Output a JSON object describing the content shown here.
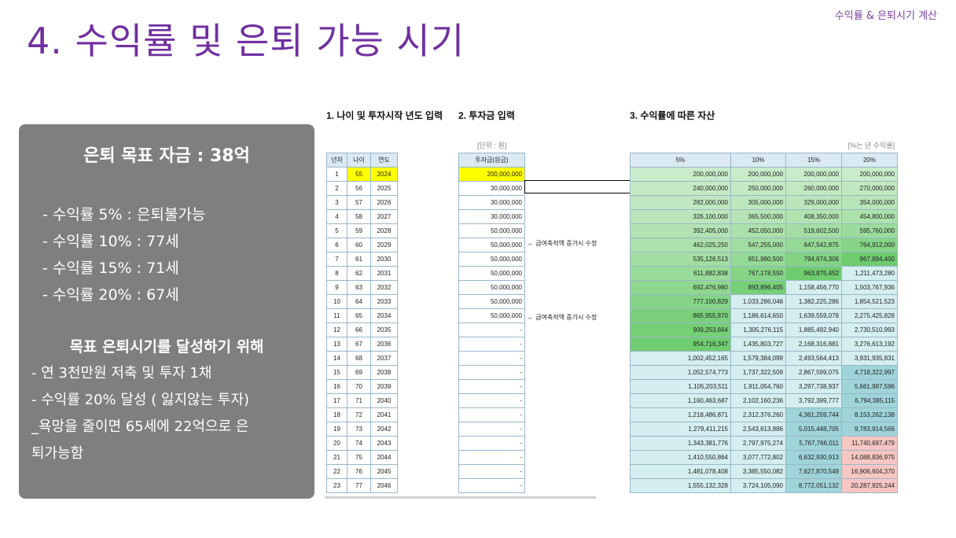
{
  "header": {
    "section_label": "수익률 & 은퇴시기 계산",
    "title": "4. 수익률 및 은퇴 가능 시기"
  },
  "summary": {
    "goal": "은퇴 목표 자금 : 38억",
    "rates": [
      "- 수익률   5% : 은퇴불가능",
      "- 수익률 10% : 77세",
      "- 수익률 15% : 71세",
      "- 수익률 20% : 67세"
    ],
    "achieve_title": "목표 은퇴시기를 달성하기 위해",
    "achieve_items": [
      "- 연 3천만원 저축 및 투자 1채",
      "- 수익률 20% 달성 ( 잃지않는 투자)",
      "_욕망을 줄이면 65세에 22억으로 은",
      "퇴가능함"
    ]
  },
  "sheet": {
    "section1_title": "1. 나이 및 투자시작 년도 입력",
    "section2_title": "2. 투자금 입력",
    "section3_title": "3. 수익률에 따른 자산",
    "unit_left": "[단위 : 원]",
    "unit_right": "[%는 년 수익률]",
    "age_headers": [
      "년차",
      "나이",
      "연도"
    ],
    "invest_header": "투자금(원금)",
    "return_headers": [
      "5%",
      "10%",
      "15%",
      "20%"
    ],
    "note": "← 급여축적액 증가시 수정",
    "rows": [
      {
        "n": "1",
        "age": "55",
        "year": "2024",
        "inv": "200,000,000",
        "r": [
          "200,000,000",
          "200,000,000",
          "200,000,000",
          "200,000,000"
        ]
      },
      {
        "n": "2",
        "age": "56",
        "year": "2025",
        "inv": "30,000,000",
        "r": [
          "240,000,000",
          "250,000,000",
          "260,000,000",
          "270,000,000"
        ]
      },
      {
        "n": "3",
        "age": "57",
        "year": "2026",
        "inv": "30,000,000",
        "r": [
          "282,000,000",
          "305,000,000",
          "329,000,000",
          "354,000,000"
        ]
      },
      {
        "n": "4",
        "age": "58",
        "year": "2027",
        "inv": "30,000,000",
        "r": [
          "326,100,000",
          "365,500,000",
          "408,350,000",
          "454,800,000"
        ]
      },
      {
        "n": "5",
        "age": "59",
        "year": "2028",
        "inv": "50,000,000",
        "r": [
          "392,405,000",
          "452,050,000",
          "519,602,500",
          "595,760,000"
        ]
      },
      {
        "n": "6",
        "age": "60",
        "year": "2029",
        "inv": "50,000,000",
        "r": [
          "462,025,250",
          "547,255,000",
          "647,542,875",
          "764,912,000"
        ]
      },
      {
        "n": "7",
        "age": "61",
        "year": "2030",
        "inv": "50,000,000",
        "r": [
          "535,126,513",
          "651,980,500",
          "794,674,306",
          "967,894,400"
        ]
      },
      {
        "n": "8",
        "age": "62",
        "year": "2031",
        "inv": "50,000,000",
        "r": [
          "611,882,838",
          "767,178,550",
          "963,875,452",
          "1,211,473,280"
        ]
      },
      {
        "n": "9",
        "age": "63",
        "year": "2032",
        "inv": "50,000,000",
        "r": [
          "692,476,980",
          "893,896,405",
          "1,158,456,770",
          "1,503,767,936"
        ]
      },
      {
        "n": "10",
        "age": "64",
        "year": "2033",
        "inv": "50,000,000",
        "r": [
          "777,100,829",
          "1,033,286,046",
          "1,382,225,286",
          "1,854,521,523"
        ]
      },
      {
        "n": "11",
        "age": "65",
        "year": "2034",
        "inv": "50,000,000",
        "r": [
          "865,955,870",
          "1,186,614,650",
          "1,639,559,078",
          "2,275,425,828"
        ]
      },
      {
        "n": "12",
        "age": "66",
        "year": "2035",
        "inv": "-",
        "r": [
          "909,253,664",
          "1,305,276,115",
          "1,885,492,940",
          "2,730,510,993"
        ]
      },
      {
        "n": "13",
        "age": "67",
        "year": "2036",
        "inv": "-",
        "r": [
          "954,716,347",
          "1,435,803,727",
          "2,168,316,881",
          "3,276,613,192"
        ]
      },
      {
        "n": "14",
        "age": "68",
        "year": "2037",
        "inv": "-",
        "r": [
          "1,002,452,165",
          "1,579,384,099",
          "2,493,564,413",
          "3,931,935,831"
        ]
      },
      {
        "n": "15",
        "age": "69",
        "year": "2038",
        "inv": "-",
        "r": [
          "1,052,574,773",
          "1,737,322,509",
          "2,867,599,075",
          "4,718,322,997"
        ]
      },
      {
        "n": "16",
        "age": "70",
        "year": "2039",
        "inv": "-",
        "r": [
          "1,105,203,511",
          "1,911,054,760",
          "3,297,738,937",
          "5,661,987,596"
        ]
      },
      {
        "n": "17",
        "age": "71",
        "year": "2040",
        "inv": "-",
        "r": [
          "1,160,463,687",
          "2,102,160,236",
          "3,792,399,777",
          "6,794,385,115"
        ]
      },
      {
        "n": "18",
        "age": "72",
        "year": "2041",
        "inv": "-",
        "r": [
          "1,218,486,871",
          "2,312,376,260",
          "4,361,259,744",
          "8,153,262,138"
        ]
      },
      {
        "n": "19",
        "age": "73",
        "year": "2042",
        "inv": "-",
        "r": [
          "1,279,411,215",
          "2,543,613,886",
          "5,015,448,705",
          "9,783,914,566"
        ]
      },
      {
        "n": "20",
        "age": "74",
        "year": "2043",
        "inv": "-",
        "r": [
          "1,343,381,776",
          "2,797,975,274",
          "5,767,766,011",
          "11,740,697,479"
        ]
      },
      {
        "n": "21",
        "age": "75",
        "year": "2044",
        "inv": "-",
        "r": [
          "1,410,550,864",
          "3,077,772,802",
          "6,632,930,913",
          "14,088,836,975"
        ]
      },
      {
        "n": "22",
        "age": "76",
        "year": "2045",
        "inv": "-",
        "r": [
          "1,481,078,408",
          "3,385,550,082",
          "7,627,870,549",
          "16,906,604,370"
        ]
      },
      {
        "n": "23",
        "age": "77",
        "year": "2046",
        "inv": "-",
        "r": [
          "1,555,132,328",
          "3,724,105,090",
          "8,772,051,132",
          "20,287,925,244"
        ]
      }
    ]
  }
}
